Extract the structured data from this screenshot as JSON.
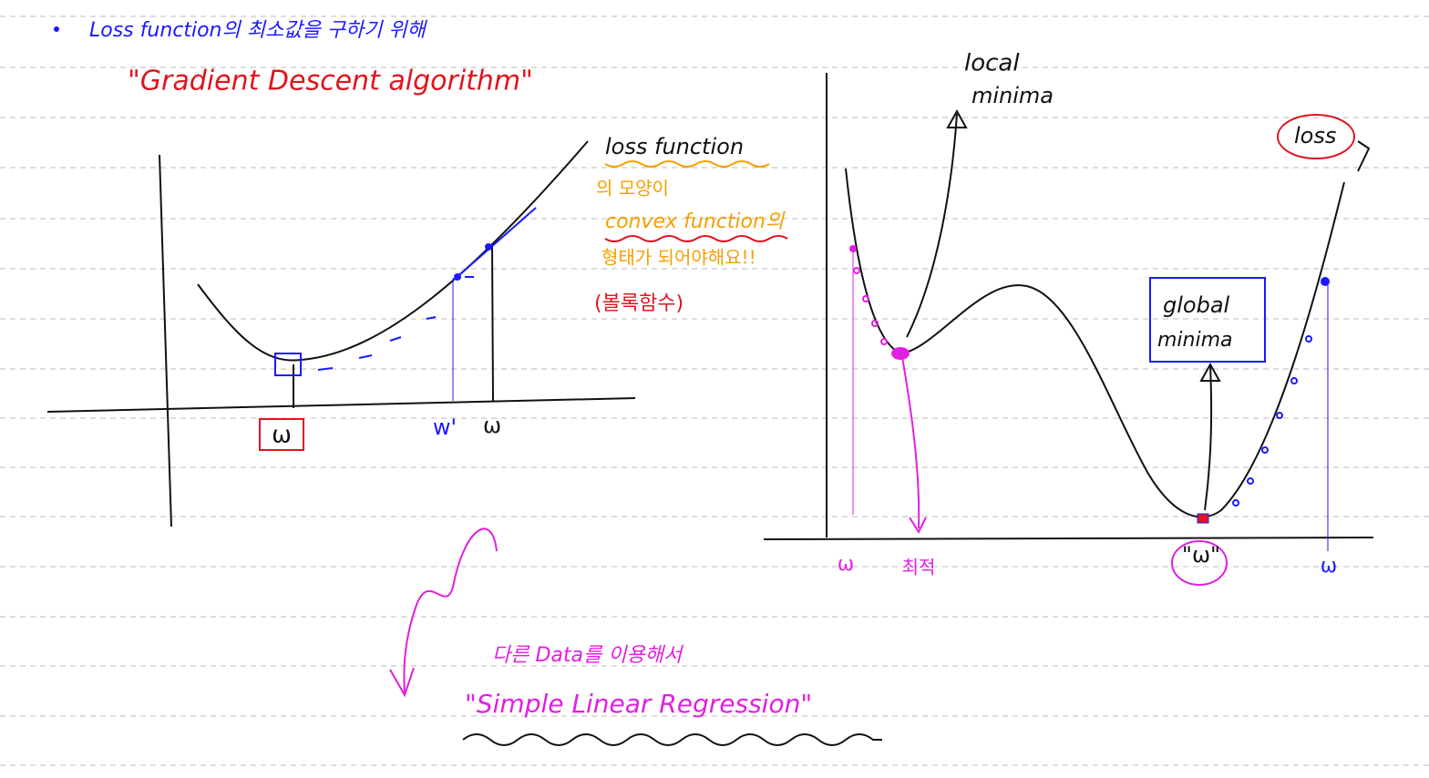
{
  "header": {
    "bullet_text": "Loss function의 최소값을 구하기 위해",
    "title": "\"Gradient Descent algorithm\""
  },
  "left_diagram": {
    "curve_label": "loss function",
    "notes": [
      "의 모양이",
      "convex function의",
      "형태가 되어야해요!!",
      "(볼록함수)"
    ],
    "axis_labels": [
      "ω",
      "w'",
      "ω"
    ]
  },
  "right_diagram": {
    "local_label": [
      "local",
      "minima"
    ],
    "loss_label": "loss",
    "global_label": [
      "global",
      "minima"
    ],
    "axis_labels": [
      "ω",
      "최적",
      "\"ω\"",
      "ω"
    ]
  },
  "footer": {
    "note": "다른 Data를 이용해서",
    "title": "\"Simple Linear Regression\""
  }
}
